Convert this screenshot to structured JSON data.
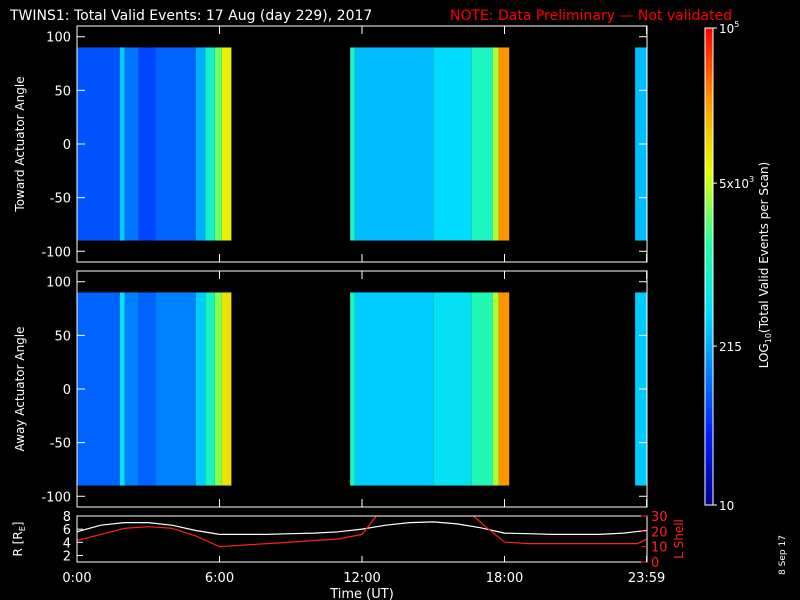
{
  "title": {
    "main": "TWINS1: Total Valid Events: 17 Aug (day 229), 2017",
    "note": "NOTE: Data Preliminary — Not validated"
  },
  "stamp": "8 Sep 17",
  "colors": {
    "background": "#000000",
    "axes": "#ffffff",
    "note": "#ff0000",
    "orbit_r": "#ffffff",
    "orbit_lshell": "#ff2020"
  },
  "chart_data": [
    {
      "type": "heatmap",
      "panel": "toward",
      "ylabel": "Toward Actuator Angle",
      "xlim": [
        0,
        24
      ],
      "ylim": [
        -110,
        110
      ],
      "y_ticks": [
        "100",
        "50",
        "0",
        "-50",
        "-100"
      ],
      "data_y_range": [
        -90,
        90
      ],
      "color_scale": "log10",
      "blocks": [
        {
          "t_start": 0.0,
          "t_end": 1.8,
          "level": 0.22
        },
        {
          "t_start": 1.8,
          "t_end": 2.0,
          "level": 0.38
        },
        {
          "t_start": 2.0,
          "t_end": 2.6,
          "level": 0.26
        },
        {
          "t_start": 2.6,
          "t_end": 3.3,
          "level": 0.2
        },
        {
          "t_start": 3.3,
          "t_end": 5.0,
          "level": 0.24
        },
        {
          "t_start": 5.0,
          "t_end": 5.4,
          "level": 0.34
        },
        {
          "t_start": 5.4,
          "t_end": 5.8,
          "level": 0.48
        },
        {
          "t_start": 5.8,
          "t_end": 6.1,
          "level": 0.6
        },
        {
          "t_start": 6.1,
          "t_end": 6.5,
          "level": 0.72
        },
        {
          "t_start": 11.5,
          "t_end": 11.7,
          "level": 0.5
        },
        {
          "t_start": 11.7,
          "t_end": 15.0,
          "level": 0.36
        },
        {
          "t_start": 15.0,
          "t_end": 16.6,
          "level": 0.4
        },
        {
          "t_start": 16.6,
          "t_end": 17.5,
          "level": 0.5
        },
        {
          "t_start": 17.5,
          "t_end": 17.75,
          "level": 0.65
        },
        {
          "t_start": 17.75,
          "t_end": 18.2,
          "level": 0.85
        },
        {
          "t_start": 23.5,
          "t_end": 24.0,
          "level": 0.36
        }
      ]
    },
    {
      "type": "heatmap",
      "panel": "away",
      "ylabel": "Away Actuator Angle",
      "xlim": [
        0,
        24
      ],
      "ylim": [
        -110,
        110
      ],
      "y_ticks": [
        "100",
        "50",
        "0",
        "-50",
        "-100"
      ],
      "data_y_range": [
        -90,
        90
      ],
      "color_scale": "log10",
      "blocks": [
        {
          "t_start": 0.0,
          "t_end": 1.8,
          "level": 0.24
        },
        {
          "t_start": 1.8,
          "t_end": 2.0,
          "level": 0.42
        },
        {
          "t_start": 2.0,
          "t_end": 2.6,
          "level": 0.28
        },
        {
          "t_start": 2.6,
          "t_end": 3.3,
          "level": 0.24
        },
        {
          "t_start": 3.3,
          "t_end": 5.0,
          "level": 0.28
        },
        {
          "t_start": 5.0,
          "t_end": 5.4,
          "level": 0.38
        },
        {
          "t_start": 5.4,
          "t_end": 5.8,
          "level": 0.5
        },
        {
          "t_start": 5.8,
          "t_end": 6.1,
          "level": 0.62
        },
        {
          "t_start": 6.1,
          "t_end": 6.5,
          "level": 0.74
        },
        {
          "t_start": 11.5,
          "t_end": 11.7,
          "level": 0.5
        },
        {
          "t_start": 11.7,
          "t_end": 15.0,
          "level": 0.38
        },
        {
          "t_start": 15.0,
          "t_end": 16.6,
          "level": 0.42
        },
        {
          "t_start": 16.6,
          "t_end": 17.5,
          "level": 0.52
        },
        {
          "t_start": 17.5,
          "t_end": 17.75,
          "level": 0.65
        },
        {
          "t_start": 17.75,
          "t_end": 18.2,
          "level": 0.85
        },
        {
          "t_start": 23.5,
          "t_end": 24.0,
          "level": 0.38
        }
      ]
    },
    {
      "type": "line",
      "panel": "orbit",
      "ylabel": "R [R",
      "ylabel_sub": "E",
      "ylabel_end": "]",
      "y2label": "L Shell",
      "xlabel": "Time (UT)",
      "x_ticks": [
        {
          "t": 0,
          "label": "0:00"
        },
        {
          "t": 6,
          "label": "6:00"
        },
        {
          "t": 12,
          "label": "12:00"
        },
        {
          "t": 18,
          "label": "18:00"
        },
        {
          "t": 23.983,
          "label": "23:59"
        }
      ],
      "ylim": [
        1,
        8
      ],
      "y_ticks": [
        "8",
        "6",
        "4",
        "2"
      ],
      "y2lim": [
        0,
        30
      ],
      "y2_ticks": [
        "30",
        "20",
        "10",
        "0"
      ],
      "series": [
        {
          "axis": "left",
          "t": [
            0,
            1,
            2,
            3,
            4,
            5,
            6,
            7,
            8,
            9,
            10,
            11,
            12,
            13,
            14,
            15,
            16,
            17,
            18,
            19,
            20,
            21,
            22,
            23,
            24
          ],
          "values": [
            5.6,
            6.6,
            7.0,
            7.0,
            6.6,
            5.8,
            5.2,
            5.2,
            5.2,
            5.3,
            5.4,
            5.6,
            6.0,
            6.6,
            7.0,
            7.1,
            6.8,
            6.2,
            5.4,
            5.3,
            5.2,
            5.2,
            5.2,
            5.4,
            5.8
          ]
        },
        {
          "axis": "right",
          "t": [
            0,
            1,
            2,
            3,
            4,
            5,
            6,
            7,
            8,
            9,
            10,
            11,
            12,
            12.6,
            16.7,
            17.2,
            18,
            19,
            20,
            21,
            22,
            23,
            23.6,
            24
          ],
          "values": [
            14,
            18,
            22,
            23,
            22,
            17,
            10,
            11,
            12,
            13,
            14,
            15,
            18,
            30,
            30,
            23,
            13,
            12,
            12,
            12,
            12,
            12,
            12,
            15
          ]
        }
      ]
    },
    {
      "type": "heatmap",
      "panel": "colorbar",
      "label": "LOG10(Total Valid Events per Scan)",
      "label_main": "LOG",
      "label_sub": "10",
      "label_rest": "(Total Valid Events per Scan)",
      "range": [
        10,
        100000
      ],
      "ticks": [
        {
          "value": 100000,
          "base": "10",
          "exp": "5"
        },
        {
          "value": 5000,
          "base": "5x10",
          "exp": "3"
        },
        {
          "value": 215,
          "base": "215",
          "exp": ""
        },
        {
          "value": 10,
          "base": "10",
          "exp": ""
        }
      ]
    }
  ]
}
